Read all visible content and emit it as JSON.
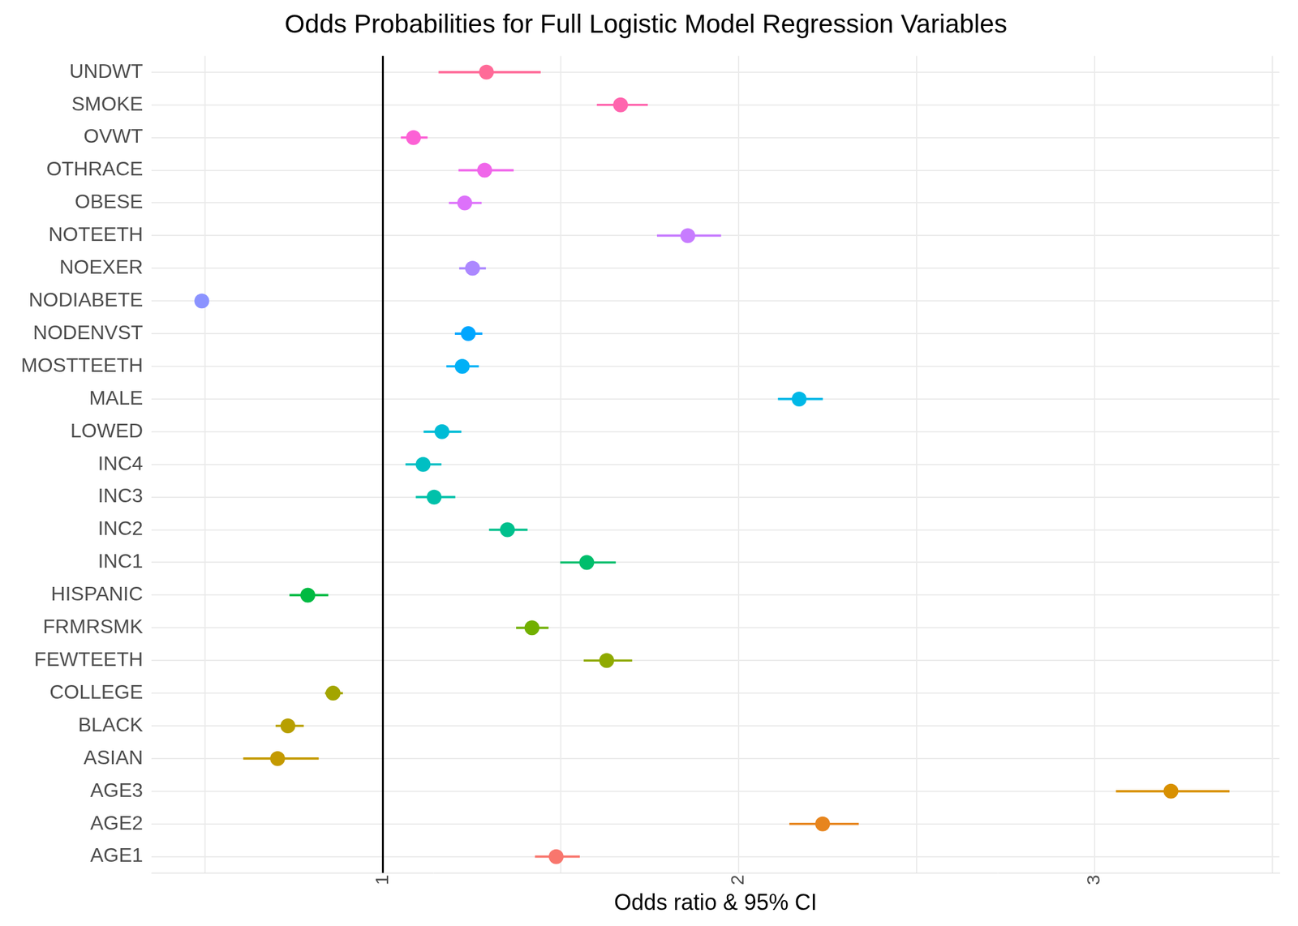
{
  "chart_data": {
    "type": "scatter",
    "title": "Odds Probabilities for Full Logistic Model Regression Variables",
    "x_label": "Odds ratio & 95% CI",
    "orientation": "horizontal",
    "categories": [
      "UNDWT",
      "SMOKE",
      "OVWT",
      "OTHRACE",
      "OBESE",
      "NOTEETH",
      "NOEXER",
      "NODIABETE",
      "NODENVST",
      "MOSTTEETH",
      "MALE",
      "LOWED",
      "INC4",
      "INC3",
      "INC2",
      "INC1",
      "HISPANIC",
      "FRMRSMK",
      "FEWTEETH",
      "COLLEGE",
      "BLACK",
      "ASIAN",
      "AGE3",
      "AGE2",
      "AGE1"
    ],
    "values": [
      1.291,
      1.668,
      1.086,
      1.286,
      1.23,
      1.857,
      1.252,
      0.491,
      1.24,
      1.223,
      2.17,
      1.166,
      1.113,
      1.144,
      1.35,
      1.573,
      0.789,
      1.419,
      1.629,
      0.86,
      0.733,
      0.704,
      3.215,
      2.236,
      1.487
    ],
    "lower": [
      1.157,
      1.602,
      1.051,
      1.213,
      1.186,
      1.771,
      1.215,
      0.487,
      1.203,
      1.179,
      2.111,
      1.115,
      1.064,
      1.093,
      1.299,
      1.499,
      0.738,
      1.375,
      1.565,
      0.838,
      0.699,
      0.608,
      3.061,
      2.143,
      1.428
    ],
    "upper": [
      1.443,
      1.744,
      1.125,
      1.367,
      1.277,
      1.95,
      1.289,
      0.495,
      1.279,
      1.269,
      2.236,
      1.22,
      1.164,
      1.203,
      1.406,
      1.654,
      0.846,
      1.465,
      1.7,
      0.887,
      0.777,
      0.819,
      3.379,
      2.337,
      1.553
    ],
    "colors": [
      "#FF6A98",
      "#FF65AE",
      "#FC61D5",
      "#F066EA",
      "#DD71FA",
      "#C77CFF",
      "#AC88FF",
      "#8B93FF",
      "#00A6FF",
      "#00B0F6",
      "#00B8E7",
      "#00BCD6",
      "#00BFC3",
      "#00C1AA",
      "#00C08D",
      "#00BE6C",
      "#00BA42",
      "#72B000",
      "#8FAA00",
      "#A3A500",
      "#B79F00",
      "#C49A00",
      "#D89000",
      "#E7851E",
      "#F8766D"
    ],
    "xlim": [
      0.35,
      3.52
    ],
    "xticks": [
      1,
      2,
      3
    ],
    "reference_line": 1,
    "grid": true
  }
}
